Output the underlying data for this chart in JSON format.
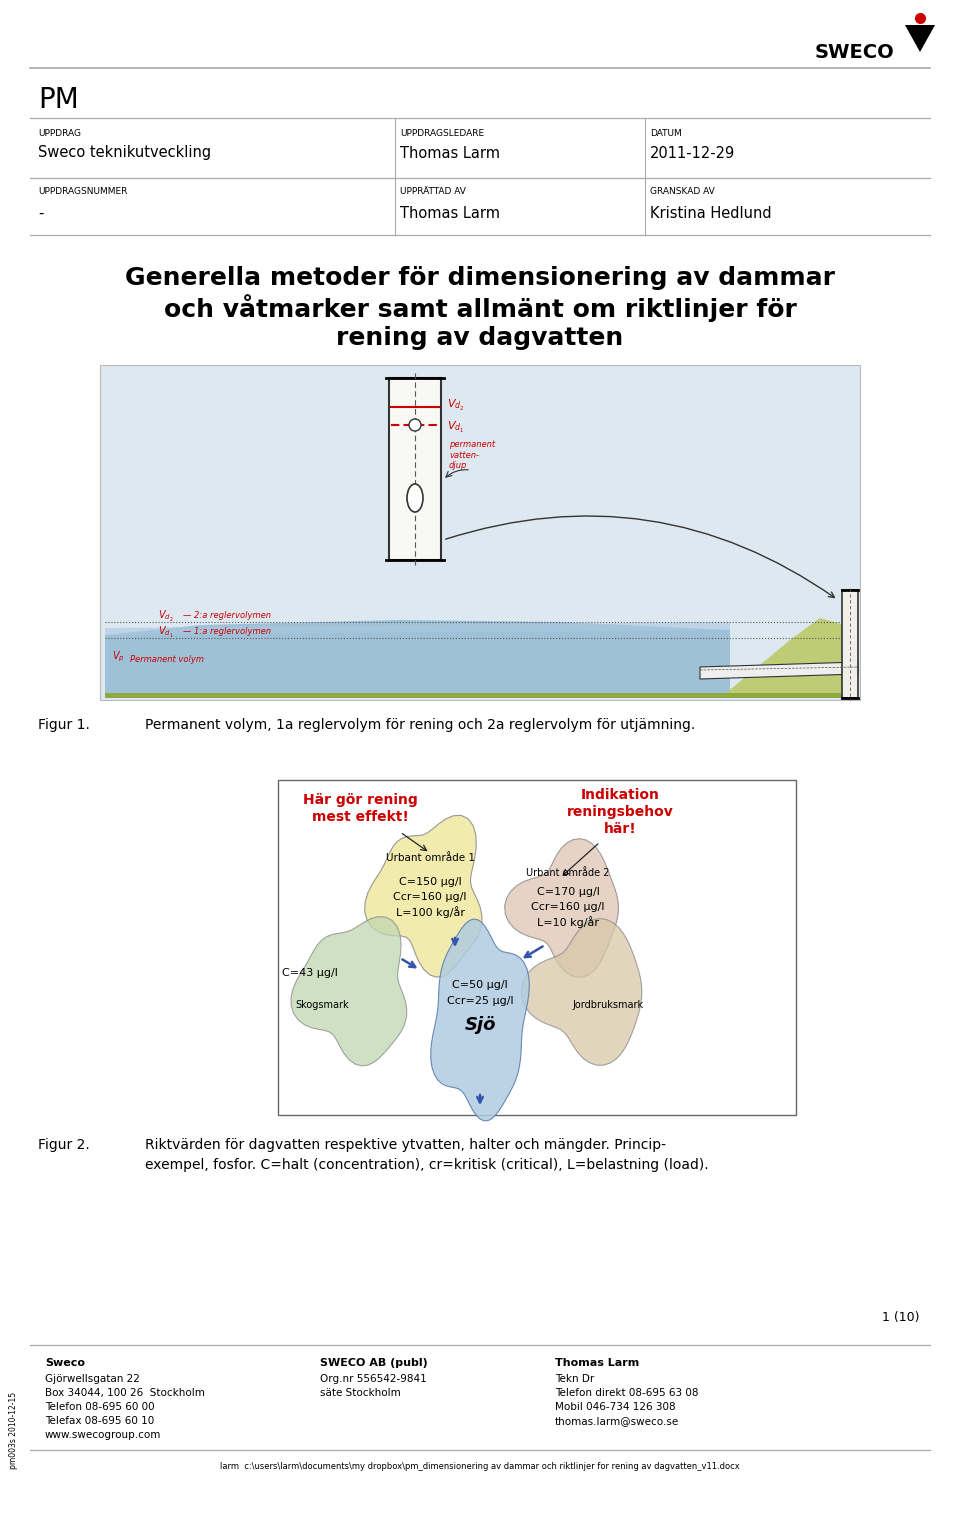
{
  "page_width": 9.6,
  "page_height": 15.4,
  "dpi": 100,
  "background_color": "#ffffff",
  "header": {
    "pm_text": "PM",
    "uppdrag_label": "UPPDRAG",
    "uppdrag_value": "Sweco teknikutveckling",
    "uppdragsledare_label": "UPPDRAGSLEDARE",
    "uppdragsledare_value": "Thomas Larm",
    "datum_label": "DATUM",
    "datum_value": "2011-12-29",
    "uppdragsnummer_label": "UPPDRAGSNUMMER",
    "uppdragsnummer_value": "-",
    "upprattad_label": "UPPRÄTTAD AV",
    "upprattad_value": "Thomas Larm",
    "granskad_label": "GRANSKAD AV",
    "granskad_value": "Kristina Hedlund"
  },
  "title_line1": "Generella metoder för dimensionering av dammar",
  "title_line2": "och våtmarker samt allmänt om riktlinjer för",
  "title_line3": "rening av dagvatten",
  "figur1_label": "Figur 1.",
  "figur1_text": "Permanent volym, 1a reglervolym för rening och 2a reglervolym för utjämning.",
  "figur2_label": "Figur 2.",
  "figur2_text1": "Riktvärden för dagvatten respektive ytvatten, halter och mängder. Princip-",
  "figur2_text2": "exempel, fosfor. C=halt (concentration), cr=kritisk (critical), L=belastning (load).",
  "red_text1_line1": "Här gör rening",
  "red_text1_line2": "mest effekt!",
  "red_text2_line1": "Indikation",
  "red_text2_line2": "reningsbehov",
  "red_text2_line3": "här!",
  "urban1_label": "Urbant område 1",
  "urban1_c": "C=150 μg/l",
  "urban1_ccr": "Ccr=160 μg/l",
  "urban1_l": "L=100 kg/år",
  "urban2_label": "Urbant område 2",
  "urban2_c": "C=170 μg/l",
  "urban2_ccr": "Ccr=160 μg/l",
  "urban2_l": "L=10 kg/år",
  "sjo_c": "C=50 μg/l",
  "sjo_ccr": "Ccr=25 μg/l",
  "sjo_label": "Sjö",
  "skog_c": "C=43 μg/l",
  "skog_label": "Skogsmark",
  "jordbruk_label": "Jordbruksmark",
  "footer_left1": "Sweco",
  "footer_left2": "Gjörwellsgatan 22",
  "footer_left3": "Box 34044, 100 26  Stockholm",
  "footer_left4": "Telefon 08-695 60 00",
  "footer_left5": "Telefax 08-695 60 10",
  "footer_left6": "www.swecogroup.com",
  "footer_mid1": "SWECO AB (publ)",
  "footer_mid2": "Org.nr 556542-9841",
  "footer_mid3": "säte Stockholm",
  "footer_right1": "Thomas Larm",
  "footer_right2": "Tekn Dr",
  "footer_right3": "Telefon direkt 08-695 63 08",
  "footer_right4": "Mobil 046-734 126 308",
  "footer_right5": "thomas.larm@sweco.se",
  "footer_page": "1 (10)",
  "footer_bottom": "larm  c:\\users\\larm\\documents\\my dropbox\\pm_dimensionering av dammar och riktlinjer for rening av dagvatten_v11.docx",
  "line_color": "#aaaaaa",
  "red_color": "#cc0000"
}
